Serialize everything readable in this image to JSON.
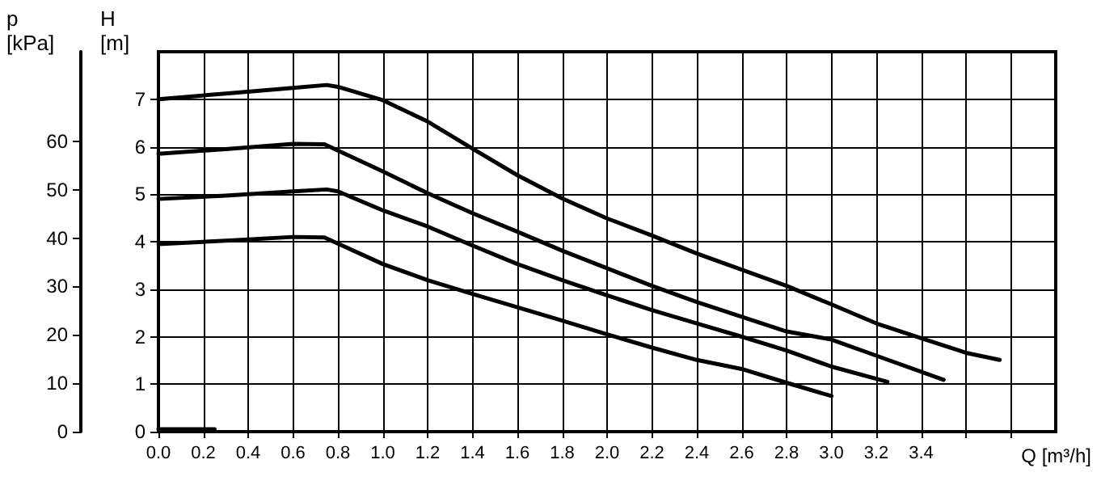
{
  "chart_data": {
    "type": "line",
    "xlabel": "Q [m³/h]",
    "ylabel": "H [m]",
    "y2label": "p [kPa]",
    "xlim": [
      0,
      4.0
    ],
    "xticks": [
      {
        "value": 0,
        "label": "0.0"
      },
      0.2,
      0.4,
      0.6,
      0.8,
      {
        "value": 1,
        "label": "1.0"
      },
      1.2,
      1.4,
      1.6,
      1.8,
      {
        "value": 2,
        "label": "2.0"
      },
      2.2,
      2.4,
      2.6,
      2.8,
      {
        "value": 3,
        "label": "3.0"
      },
      3.2,
      3.4,
      {
        "value": 3.6,
        "label": null
      },
      {
        "value": 3.8,
        "label": null
      }
    ],
    "ylim": [
      0,
      8
    ],
    "yticks": [
      0,
      1,
      2,
      3,
      4,
      5,
      6,
      7
    ],
    "y2lim": [
      0,
      78.5
    ],
    "y2ticks": [
      0,
      10,
      20,
      30,
      40,
      50,
      60
    ],
    "grid": true,
    "series": [
      {
        "color": "#000000",
        "x": [
          0,
          0.3,
          0.6,
          0.75,
          0.8,
          1.0,
          1.2,
          1.4,
          1.6,
          1.8,
          2.0,
          2.2,
          2.4,
          2.6,
          2.8,
          3.0,
          3.2,
          3.4,
          3.6,
          3.75
        ],
        "values": [
          7.0,
          7.12,
          7.24,
          7.3,
          7.26,
          6.98,
          6.53,
          5.96,
          5.4,
          4.91,
          4.49,
          4.13,
          3.75,
          3.41,
          3.07,
          2.68,
          2.28,
          1.97,
          1.66,
          1.51
        ]
      },
      {
        "color": "#000000",
        "x": [
          0,
          0.3,
          0.6,
          0.74,
          1.0,
          1.2,
          1.4,
          1.6,
          1.8,
          2.0,
          2.2,
          2.4,
          2.6,
          2.8,
          3.0,
          3.2,
          3.5
        ],
        "values": [
          5.85,
          5.95,
          6.06,
          6.05,
          5.48,
          5.02,
          4.6,
          4.21,
          3.81,
          3.44,
          3.07,
          2.73,
          2.42,
          2.11,
          1.94,
          1.6,
          1.09
        ]
      },
      {
        "color": "#000000",
        "x": [
          0,
          0.3,
          0.6,
          0.75,
          0.8,
          1.0,
          1.2,
          1.4,
          1.6,
          1.8,
          2.0,
          2.2,
          2.4,
          2.6,
          2.8,
          3.0,
          3.25
        ],
        "values": [
          4.9,
          4.97,
          5.06,
          5.1,
          5.06,
          4.66,
          4.32,
          3.92,
          3.53,
          3.19,
          2.87,
          2.56,
          2.28,
          2.0,
          1.71,
          1.37,
          1.05
        ]
      },
      {
        "color": "#000000",
        "x": [
          0,
          0.3,
          0.6,
          0.74,
          1.0,
          1.2,
          1.4,
          1.6,
          1.8,
          2.0,
          2.2,
          2.4,
          2.6,
          2.8,
          3.0
        ],
        "values": [
          3.95,
          4.02,
          4.1,
          4.09,
          3.53,
          3.19,
          2.9,
          2.62,
          2.34,
          2.05,
          1.77,
          1.51,
          1.32,
          1.03,
          0.75
        ]
      },
      {
        "color": "#000000",
        "x": [
          0,
          0.25
        ],
        "values": [
          0.05,
          0.05
        ]
      }
    ]
  }
}
